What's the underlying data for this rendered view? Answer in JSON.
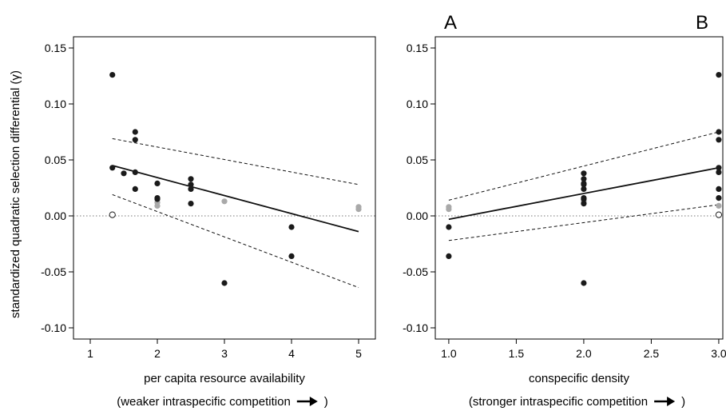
{
  "y_axis_label": "standardized quadratic selection differential (γ)",
  "chart_data": [
    {
      "type": "scatter",
      "panel_label": "A",
      "xlabel": "per capita resource availability",
      "xlabel_sub": "(weaker intraspecific competition",
      "xlabel_sub_close": ")",
      "xlim": [
        0.75,
        5.25
      ],
      "ylim": [
        -0.11,
        0.16
      ],
      "x_ticks": [
        1,
        2,
        3,
        4,
        5
      ],
      "x_tick_labels": [
        "1",
        "2",
        "3",
        "4",
        "5"
      ],
      "y_ticks": [
        -0.1,
        -0.05,
        0.0,
        0.05,
        0.1,
        0.15
      ],
      "y_tick_labels": [
        "-0.10",
        "-0.05",
        "0.00",
        "0.05",
        "0.10",
        "0.15"
      ],
      "reference_line_y": 0,
      "series": [
        {
          "style": "black-filled",
          "color": "#1a1a1a",
          "points": [
            [
              1.33,
              0.126
            ],
            [
              1.33,
              0.043
            ],
            [
              1.5,
              0.038
            ],
            [
              1.67,
              0.075
            ],
            [
              1.67,
              0.068
            ],
            [
              1.67,
              0.039
            ],
            [
              1.67,
              0.024
            ],
            [
              2,
              0.029
            ],
            [
              2,
              0.016
            ],
            [
              2,
              0.015
            ],
            [
              2.5,
              0.033
            ],
            [
              2.5,
              0.028
            ],
            [
              2.5,
              0.024
            ],
            [
              2.5,
              0.011
            ],
            [
              3,
              -0.06
            ],
            [
              4,
              -0.01
            ],
            [
              4,
              -0.036
            ]
          ]
        },
        {
          "style": "gray-filled",
          "color": "#a9a9a9",
          "points": [
            [
              2,
              0.012
            ],
            [
              2,
              0.009
            ],
            [
              3,
              0.013
            ],
            [
              5,
              0.008
            ],
            [
              5,
              0.006
            ]
          ]
        },
        {
          "style": "open-circle",
          "color": "#1a1a1a",
          "points": [
            [
              1.33,
              0.001
            ]
          ]
        }
      ],
      "fit_line": [
        [
          1.33,
          0.045
        ],
        [
          5,
          -0.014
        ]
      ],
      "ci_upper": [
        [
          1.33,
          0.069
        ],
        [
          5,
          0.028
        ]
      ],
      "ci_lower": [
        [
          1.33,
          0.019
        ],
        [
          5,
          -0.064
        ]
      ]
    },
    {
      "type": "scatter",
      "panel_label": "B",
      "xlabel": "conspecific density",
      "xlabel_sub": "(stronger intraspecific competition",
      "xlabel_sub_close": ")",
      "xlim": [
        0.9,
        3.03
      ],
      "ylim": [
        -0.11,
        0.16
      ],
      "x_ticks": [
        1.0,
        1.5,
        2.0,
        2.5,
        3.0
      ],
      "x_tick_labels": [
        "1.0",
        "1.5",
        "2.0",
        "2.5",
        "3.0"
      ],
      "y_ticks": [
        -0.1,
        -0.05,
        0.0,
        0.05,
        0.1,
        0.15
      ],
      "y_tick_labels": [
        "-0.10",
        "-0.05",
        "0.00",
        "0.05",
        "0.10",
        "0.15"
      ],
      "reference_line_y": 0,
      "series": [
        {
          "style": "black-filled",
          "color": "#1a1a1a",
          "points": [
            [
              1,
              -0.01
            ],
            [
              1,
              -0.036
            ],
            [
              2,
              0.038
            ],
            [
              2,
              0.033
            ],
            [
              2,
              0.029
            ],
            [
              2,
              0.028
            ],
            [
              2,
              0.024
            ],
            [
              2,
              0.016
            ],
            [
              2,
              0.015
            ],
            [
              2,
              0.011
            ],
            [
              2,
              -0.06
            ],
            [
              3,
              0.126
            ],
            [
              3,
              0.075
            ],
            [
              3,
              0.068
            ],
            [
              3,
              0.043
            ],
            [
              3,
              0.039
            ],
            [
              3,
              0.024
            ],
            [
              3,
              0.016
            ]
          ]
        },
        {
          "style": "gray-filled",
          "color": "#a9a9a9",
          "points": [
            [
              1,
              0.008
            ],
            [
              1,
              0.006
            ],
            [
              2,
              0.013
            ],
            [
              2,
              0.012
            ],
            [
              3,
              0.009
            ]
          ]
        },
        {
          "style": "open-circle",
          "color": "#1a1a1a",
          "points": [
            [
              3,
              0.001
            ]
          ]
        }
      ],
      "fit_line": [
        [
          1,
          -0.003
        ],
        [
          3,
          0.043
        ]
      ],
      "ci_upper": [
        [
          1,
          0.014
        ],
        [
          3,
          0.075
        ]
      ],
      "ci_lower": [
        [
          1,
          -0.022
        ],
        [
          3,
          0.01
        ]
      ]
    }
  ]
}
